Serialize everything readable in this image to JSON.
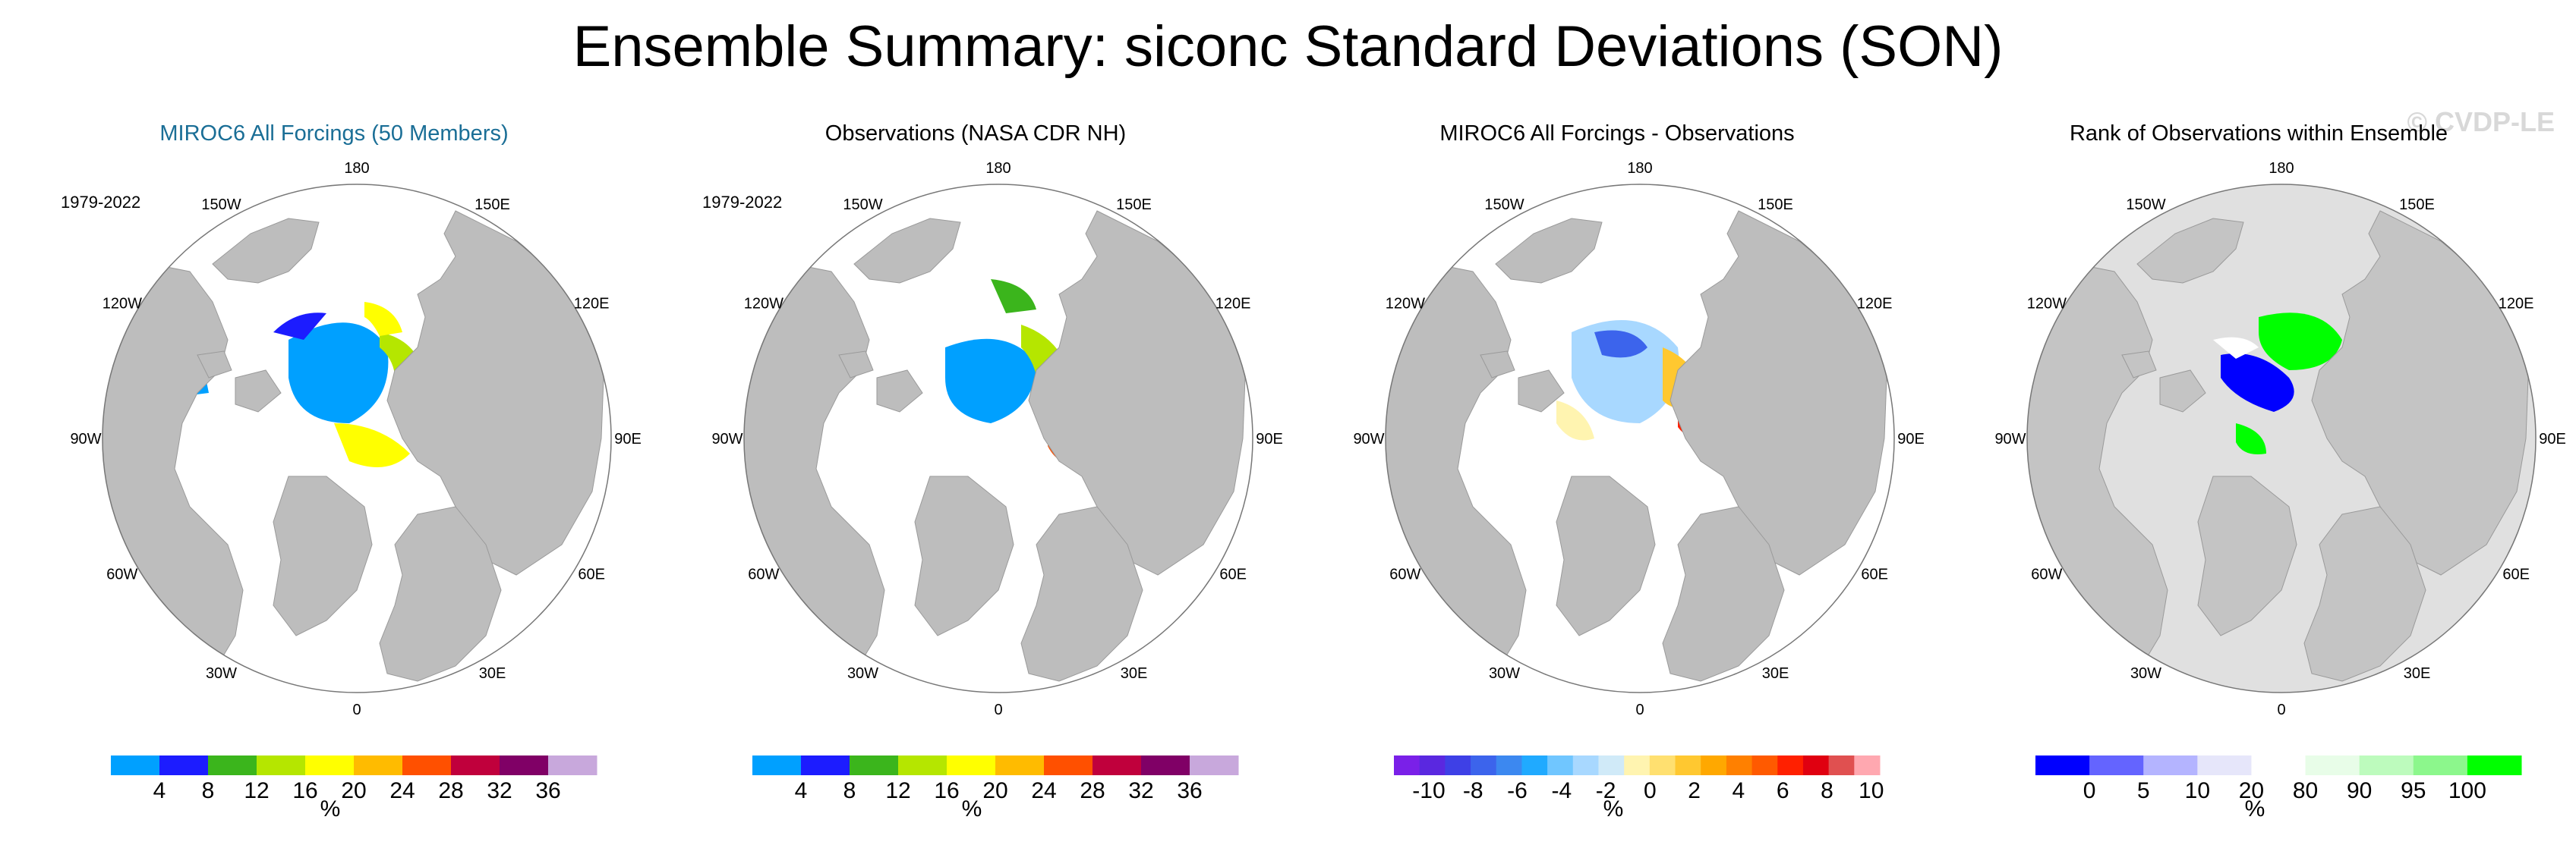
{
  "title": "Ensemble Summary: siconc Standard Deviations (SON)",
  "watermark": "© CVDP-LE",
  "lon_labels": [
    "180",
    "150E",
    "120E",
    "90E",
    "60E",
    "30E",
    "0",
    "30W",
    "60W",
    "90W",
    "120W",
    "150W"
  ],
  "colors": {
    "land": "#bdbdbd",
    "ocean_fill": "#ffffff",
    "rank_bg": "#e0e0e0",
    "title_blue": "#1a6e96"
  },
  "panels": [
    {
      "id": "model",
      "title": "MIROC6 All Forcings (50 Members)",
      "title_color": "#1a6e96",
      "period": "1979-2022",
      "colorbar": {
        "colors": [
          "#00a0ff",
          "#1c1cff",
          "#3bb51c",
          "#b5e600",
          "#ffff00",
          "#ffbb00",
          "#ff5000",
          "#c0003c",
          "#800066",
          "#c8a8dc"
        ],
        "labels": [
          "4",
          "8",
          "12",
          "16",
          "20",
          "24",
          "28",
          "32",
          "36"
        ],
        "units": "%"
      }
    },
    {
      "id": "obs",
      "title": "Observations (NASA CDR NH)",
      "title_color": "#000000",
      "period": "1979-2022",
      "colorbar": {
        "colors": [
          "#00a0ff",
          "#1c1cff",
          "#3bb51c",
          "#b5e600",
          "#ffff00",
          "#ffbb00",
          "#ff5000",
          "#c0003c",
          "#800066",
          "#c8a8dc"
        ],
        "labels": [
          "4",
          "8",
          "12",
          "16",
          "20",
          "24",
          "28",
          "32",
          "36"
        ],
        "units": "%"
      }
    },
    {
      "id": "diff",
      "title": "MIROC6 All Forcings - Observations",
      "title_color": "#000000",
      "period": "",
      "colorbar": {
        "colors": [
          "#7a20e8",
          "#5a28e0",
          "#3e40e6",
          "#3c64ec",
          "#3c88f0",
          "#20aaff",
          "#70c6ff",
          "#a8d8ff",
          "#d0eaf8",
          "#fff4b0",
          "#ffe070",
          "#ffc830",
          "#ffa800",
          "#ff8000",
          "#ff5a00",
          "#ff2000",
          "#e00010",
          "#e05050",
          "#ffa8b0"
        ],
        "labels": [
          "-10",
          "-8",
          "-6",
          "-4",
          "-2",
          "0",
          "2",
          "4",
          "6",
          "8",
          "10"
        ],
        "units": "%"
      }
    },
    {
      "id": "rank",
      "title": "Rank of Observations within Ensemble",
      "title_color": "#000000",
      "period": "",
      "colorbar": {
        "colors": [
          "#0000ff",
          "#6464ff",
          "#b4b4ff",
          "#e6e6fa",
          "#ffffff",
          "#e8fde8",
          "#bdfbbd",
          "#8cf78c",
          "#00ff00"
        ],
        "labels": [
          "0",
          "5",
          "10",
          "20",
          "80",
          "90",
          "95",
          "100"
        ],
        "units": "%"
      }
    }
  ]
}
